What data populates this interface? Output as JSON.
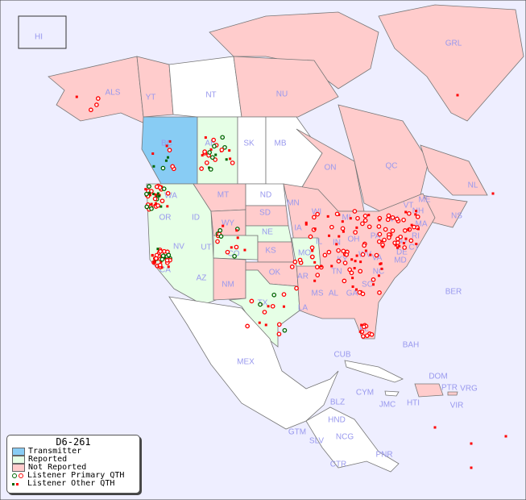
{
  "legend": {
    "title": "D6-261",
    "items": [
      {
        "label": "Transmitter",
        "color": "#88ccf4"
      },
      {
        "label": "Reported",
        "color": "#e6ffe6"
      },
      {
        "label": "Not Reported",
        "color": "#ffcccc"
      },
      {
        "label": "Listener Primary QTH",
        "colors": [
          "#006600",
          "#ff0000"
        ]
      },
      {
        "label": "Listener Other QTH",
        "colors": [
          "#006600",
          "#ff0000"
        ]
      }
    ]
  },
  "colors": {
    "ocean": "#eeeeff",
    "transmitter": "#88ccf4",
    "reported": "#e6ffe6",
    "not_reported": "#ffcccc",
    "other": "#ffffff",
    "border": "#777777",
    "label": "#9999ee"
  },
  "region_labels": [
    "HI",
    "ALS",
    "YT",
    "NT",
    "NU",
    "GRL",
    "BC",
    "AB",
    "SK",
    "MB",
    "ON",
    "QC",
    "NL",
    "NS",
    "WA",
    "MT",
    "ND",
    "MN",
    "WI",
    "MI",
    "NY",
    "VT",
    "NH",
    "ME",
    "OR",
    "ID",
    "WY",
    "SD",
    "IA",
    "NE",
    "IL",
    "IN",
    "OH",
    "PA",
    "NJ",
    "CT",
    "MA",
    "RI",
    "NV",
    "UT",
    "CO",
    "KS",
    "MO",
    "KY",
    "WV",
    "VA",
    "MD",
    "DE",
    "CA",
    "AZ",
    "NM",
    "OK",
    "AR",
    "TN",
    "NC",
    "SC",
    "MS",
    "AL",
    "GA",
    "LA",
    "TX",
    "FL",
    "MEX",
    "CUB",
    "BAH",
    "BER",
    "DOM",
    "PTR",
    "VRG",
    "CYM",
    "JMC",
    "HTI",
    "VIR",
    "BLZ",
    "HND",
    "GTM",
    "SLV",
    "NCG",
    "CTR",
    "PNR"
  ]
}
